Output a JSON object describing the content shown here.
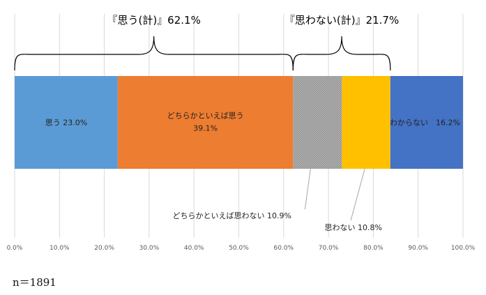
{
  "chart_data": {
    "type": "bar",
    "orientation": "horizontal-stacked-100",
    "segments": [
      {
        "name": "思う",
        "value": 23.0,
        "label": "思う 23.0%",
        "color": "#5B9BD5"
      },
      {
        "name": "どちらかといえば思う",
        "value": 39.1,
        "label_line1": "どちらかといえば思う",
        "label_line2": "39.1%",
        "color": "#ED7D31"
      },
      {
        "name": "どちらかといえば思わない",
        "value": 10.9,
        "label": "どちらかといえば思わない 10.9%",
        "color": "#A5A5A5",
        "pattern": "dotted"
      },
      {
        "name": "思わない",
        "value": 10.8,
        "label": "思わない 10.8%",
        "color": "#FFC000"
      },
      {
        "name": "わからない",
        "value": 16.2,
        "label": "わからない　16.2%",
        "color": "#4472C4"
      }
    ],
    "groups": [
      {
        "label": "『思う(計)』62.1%",
        "from": 0,
        "to": 62.1
      },
      {
        "label": "『思わない(計)』21.7%",
        "from": 62.1,
        "to": 83.8
      }
    ],
    "xlim": [
      0,
      100
    ],
    "ticks": [
      "0.0%",
      "10.0%",
      "20.0%",
      "30.0%",
      "40.0%",
      "50.0%",
      "60.0%",
      "70.0%",
      "80.0%",
      "90.0%",
      "100.0%"
    ],
    "gridlines": true
  },
  "note": "n＝1891"
}
